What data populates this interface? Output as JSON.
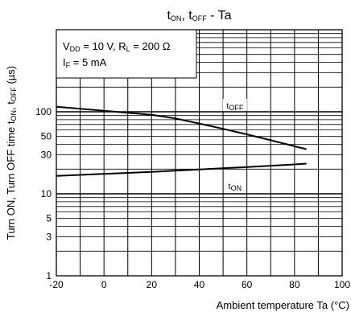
{
  "chart_data": {
    "type": "line",
    "title": {
      "t1": "t",
      "s1": "ON",
      "sep": ", t",
      "s2": "OFF",
      "rest": " - Ta"
    },
    "xlabel": "Ambient temperature Ta (°C)",
    "ylabel": {
      "pre": "Turn ON, Turn OFF time t",
      "s1": "ON",
      "mid": ", t",
      "s2": "OFF",
      "post": " (µs)"
    },
    "x_ticks": [
      "-20",
      "0",
      "20",
      "40",
      "60",
      "80",
      "100"
    ],
    "y_ticks": [
      "1",
      "3",
      "5",
      "10",
      "30",
      "50",
      "100"
    ],
    "xlim": [
      -20,
      100
    ],
    "ylim": [
      1,
      1000
    ],
    "y_scale": "log",
    "grid": true,
    "conditions": {
      "line1": {
        "a": "V",
        "a_sub": "DD",
        "b": " = 10 V, R",
        "b_sub": "L",
        "c": " = 200 Ω"
      },
      "line2": {
        "a": "I",
        "a_sub": "F",
        "b": " = 5 mA"
      }
    },
    "series": [
      {
        "name": {
          "t": "t",
          "sub": "OFF"
        },
        "x": [
          -20,
          0,
          20,
          30,
          40,
          50,
          60,
          70,
          80,
          85
        ],
        "y": [
          115,
          103,
          92,
          83,
          72,
          62,
          53,
          45,
          38,
          35
        ]
      },
      {
        "name": {
          "t": "t",
          "sub": "ON"
        },
        "x": [
          -20,
          0,
          20,
          40,
          60,
          80,
          85
        ],
        "y": [
          16.5,
          17.5,
          18.5,
          19.8,
          21.2,
          22.8,
          23.3
        ]
      }
    ]
  }
}
